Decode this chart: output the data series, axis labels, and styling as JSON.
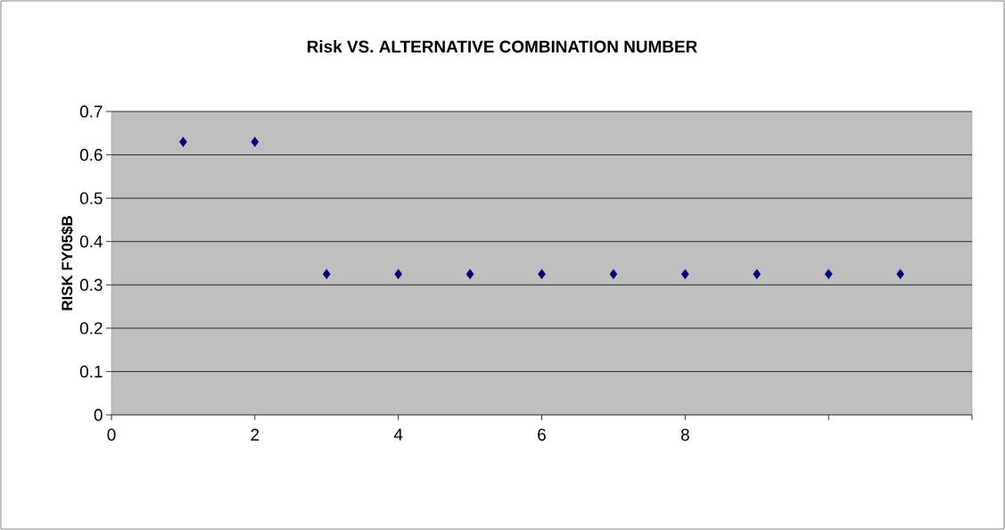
{
  "chart_data": {
    "type": "scatter",
    "title": "Risk VS. ALTERNATIVE COMBINATION NUMBER",
    "ylabel": "RISK FY05$B",
    "x": [
      1,
      2,
      3,
      4,
      5,
      6,
      7,
      8,
      9,
      10,
      11
    ],
    "values": [
      0.63,
      0.63,
      0.325,
      0.325,
      0.325,
      0.325,
      0.325,
      0.325,
      0.325,
      0.325,
      0.325
    ],
    "color": "#000080",
    "marker": "diamond",
    "grid": "y",
    "xlim": [
      0,
      12
    ],
    "xticks": [
      0,
      2,
      4,
      6,
      8,
      {
        "value": 10,
        "label": null
      },
      {
        "value": 12,
        "label": null
      }
    ],
    "ylim": [
      0,
      0.7
    ],
    "yticks": [
      0,
      0.1,
      0.2,
      0.3,
      0.4,
      0.5,
      0.6,
      0.7
    ]
  }
}
